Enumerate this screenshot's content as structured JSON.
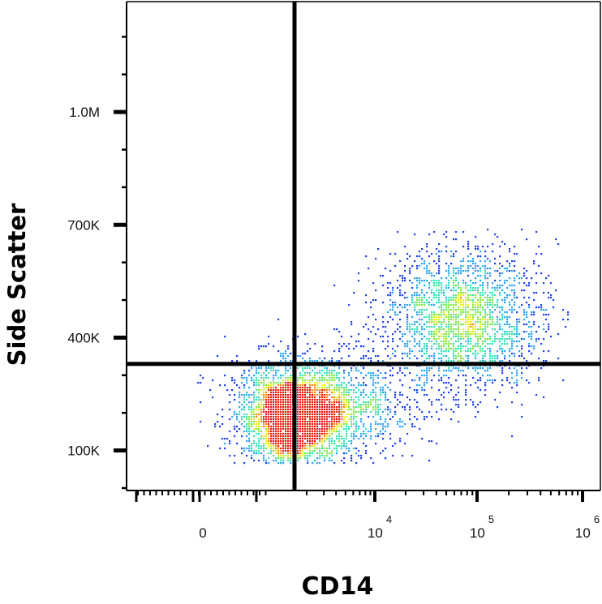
{
  "chart_data": {
    "type": "scatter",
    "subtype": "flow cytometry density dot plot",
    "xlabel": "CD14",
    "ylabel": "Side Scatter",
    "x_scale": "biexponential (logicle)",
    "y_scale": "linear",
    "ylim": [
      0,
      1300000
    ],
    "x_tick_labels": [
      {
        "value": 0,
        "base": "0",
        "exp": ""
      },
      {
        "value": 10000,
        "base": "10",
        "exp": "4"
      },
      {
        "value": 100000,
        "base": "10",
        "exp": "5"
      },
      {
        "value": 1000000,
        "base": "10",
        "exp": "6"
      }
    ],
    "y_tick_labels": [
      {
        "value": 100000,
        "label": "100K"
      },
      {
        "value": 400000,
        "label": "400K"
      },
      {
        "value": 700000,
        "label": "700K"
      },
      {
        "value": 1000000,
        "label": "1.0M"
      }
    ],
    "quadrant_gate": {
      "x": 1500,
      "y": 330000
    },
    "density_colors": [
      "#1f3ff0",
      "#2aa4f4",
      "#38e0b8",
      "#7ee84a",
      "#e8f020",
      "#f48a18",
      "#e81a10"
    ],
    "populations": [
      {
        "name": "",
        "x_center": 300,
        "y_center": 180000,
        "relative_density": 1.0
      },
      {
        "name": "",
        "x_center": 4000,
        "y_center": 230000,
        "relative_density": 0.25
      },
      {
        "name": "",
        "x_center": 70000,
        "y_center": 420000,
        "relative_density": 0.55
      }
    ],
    "grid": false,
    "legend": "none"
  }
}
